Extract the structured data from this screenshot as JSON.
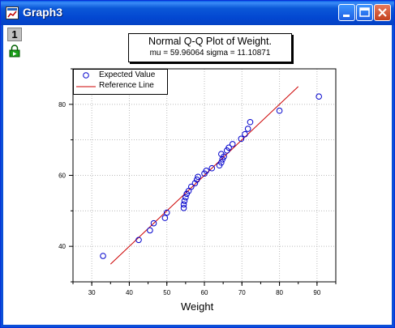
{
  "window": {
    "title": "Graph3",
    "layer_tab": "1",
    "buttons": {
      "minimize": "minimize",
      "maximize": "maximize",
      "close": "close"
    }
  },
  "plot": {
    "title": "Normal Q-Q Plot of Weight.",
    "subtitle": "mu = 59.96064  sigma = 11.10871",
    "legend": [
      "Expected Value",
      "Reference Line"
    ],
    "colors": {
      "points": "#0000cc",
      "reference_line": "#cc0000",
      "grid": "#bbbbbb"
    }
  },
  "chart_data": {
    "type": "scatter",
    "title": "Normal Q-Q Plot of Weight.",
    "subtitle": "mu = 59.96064  sigma = 11.10871",
    "xlabel": "Weight",
    "ylabel": "",
    "xlim": [
      25,
      95
    ],
    "ylim": [
      30,
      90
    ],
    "xticks": [
      30,
      40,
      50,
      60,
      70,
      80,
      90
    ],
    "yticks": [
      40,
      60,
      80
    ],
    "grid": true,
    "legend_position": "top-left",
    "series": [
      {
        "name": "Expected Value",
        "marker": "circle",
        "points": [
          [
            33.0,
            37.3
          ],
          [
            42.5,
            41.8
          ],
          [
            45.5,
            44.5
          ],
          [
            46.5,
            46.5
          ],
          [
            49.5,
            48.0
          ],
          [
            50.0,
            49.5
          ],
          [
            54.5,
            50.8
          ],
          [
            54.5,
            51.8
          ],
          [
            54.7,
            52.8
          ],
          [
            55.0,
            53.8
          ],
          [
            55.3,
            54.8
          ],
          [
            55.8,
            55.6
          ],
          [
            56.5,
            56.8
          ],
          [
            57.5,
            57.8
          ],
          [
            58.0,
            58.8
          ],
          [
            58.3,
            59.6
          ],
          [
            60.0,
            60.5
          ],
          [
            60.5,
            61.3
          ],
          [
            62.0,
            62.0
          ],
          [
            64.0,
            62.8
          ],
          [
            64.5,
            63.6
          ],
          [
            64.8,
            64.5
          ],
          [
            65.2,
            65.3
          ],
          [
            64.5,
            66.0
          ],
          [
            66.0,
            67.0
          ],
          [
            66.5,
            67.8
          ],
          [
            67.5,
            68.8
          ],
          [
            69.8,
            70.3
          ],
          [
            70.8,
            71.6
          ],
          [
            71.6,
            73.1
          ],
          [
            72.2,
            75.0
          ],
          [
            80.0,
            78.2
          ],
          [
            90.5,
            82.2
          ]
        ]
      },
      {
        "name": "Reference Line",
        "line": [
          [
            35,
            35.0
          ],
          [
            85,
            85.0
          ]
        ]
      }
    ]
  }
}
